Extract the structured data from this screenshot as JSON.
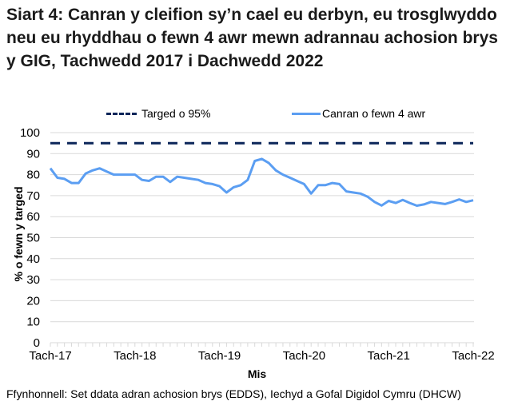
{
  "title": "Siart 4: Canran y cleifion sy’n cael eu derbyn, eu trosglwyddo neu eu rhyddhau o fewn 4 awr mewn adrannau achosion brys y GIG, Tachwedd 2017 i Dachwedd 2022",
  "legend": {
    "target_label": "Targed o 95%",
    "series_label": "Canran o fewn 4 awr"
  },
  "axes": {
    "ylabel": "% o fewn y targed",
    "xlabel": "Mis",
    "y_ticks": [
      "0",
      "10",
      "20",
      "30",
      "40",
      "50",
      "60",
      "70",
      "80",
      "90",
      "100"
    ],
    "x_ticks": [
      "Tach-17",
      "Tach-18",
      "Tach-19",
      "Tach-20",
      "Tach-21",
      "Tach-22"
    ]
  },
  "source": "Ffynhonnell: Set ddata adran achosion brys (EDDS), Iechyd a Gofal Digidol Cymru (DHCW)",
  "colors": {
    "target_line": "#0b2559",
    "series_line": "#5b9ef2",
    "gridline": "#d9d9d9"
  },
  "chart_data": {
    "type": "line",
    "title": "Siart 4: Canran y cleifion sy’n cael eu derbyn, eu trosglwyddo neu eu rhyddhau o fewn 4 awr mewn adrannau achosion brys y GIG, Tachwedd 2017 i Dachwedd 2022",
    "xlabel": "Mis",
    "ylabel": "% o fewn y targed",
    "ylim": [
      0,
      100
    ],
    "grid": true,
    "legend_position": "top",
    "x_tick_labels": [
      "Tach-17",
      "Tach-18",
      "Tach-19",
      "Tach-20",
      "Tach-21",
      "Tach-22"
    ],
    "x_start": "Nov-2017",
    "x_end": "Nov-2022",
    "frequency": "monthly",
    "series": [
      {
        "name": "Targed o 95%",
        "style": "dashed",
        "values": [
          95,
          95,
          95,
          95,
          95,
          95,
          95,
          95,
          95,
          95,
          95,
          95,
          95,
          95,
          95,
          95,
          95,
          95,
          95,
          95,
          95,
          95,
          95,
          95,
          95,
          95,
          95,
          95,
          95,
          95,
          95,
          95,
          95,
          95,
          95,
          95,
          95,
          95,
          95,
          95,
          95,
          95,
          95,
          95,
          95,
          95,
          95,
          95,
          95,
          95,
          95,
          95,
          95,
          95,
          95,
          95,
          95,
          95,
          95,
          95,
          95
        ]
      },
      {
        "name": "Canran o fewn 4 awr",
        "style": "solid",
        "values": [
          83.0,
          78.5,
          78.0,
          76.0,
          76.0,
          80.5,
          82.0,
          83.0,
          81.5,
          80.0,
          80.0,
          80.0,
          80.0,
          77.5,
          77.0,
          79.0,
          79.0,
          76.5,
          79.0,
          78.5,
          78.0,
          77.5,
          76.0,
          75.5,
          74.5,
          71.5,
          74.0,
          75.0,
          77.5,
          86.5,
          87.5,
          85.5,
          82.0,
          80.0,
          78.5,
          77.0,
          75.5,
          71.0,
          75.0,
          75.0,
          76.0,
          75.5,
          72.0,
          71.5,
          71.0,
          69.5,
          67.0,
          65.3,
          67.5,
          66.5,
          68.0,
          66.5,
          65.2,
          65.8,
          67.0,
          66.5,
          66.0,
          67.0,
          68.2,
          67.0,
          67.8
        ]
      }
    ]
  }
}
